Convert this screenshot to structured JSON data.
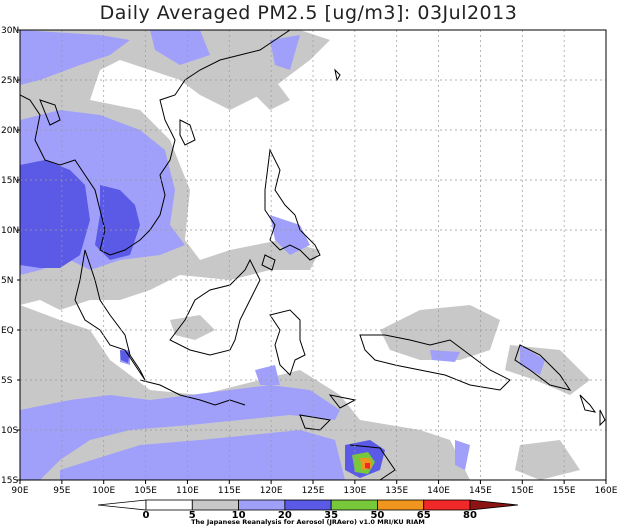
{
  "title": "Daily Averaged PM2.5 [ug/m3]: 03Jul2013",
  "credit": "The Japanese Reanalysis for Aerosol (JRAero) v1.0 MRI/KU RIAM",
  "map": {
    "lon_range": [
      90,
      160
    ],
    "lat_range": [
      -15,
      30
    ],
    "lon_ticks": [
      "90E",
      "95E",
      "100E",
      "105E",
      "110E",
      "115E",
      "120E",
      "125E",
      "130E",
      "135E",
      "140E",
      "145E",
      "150E",
      "155E",
      "160E"
    ],
    "lat_ticks": [
      "30N",
      "25N",
      "20N",
      "15N",
      "10N",
      "5N",
      "EQ",
      "5S",
      "10S",
      "15S"
    ],
    "gridlines": true
  },
  "colorbar": {
    "levels": [
      "0",
      "5",
      "10",
      "20",
      "35",
      "50",
      "65",
      "80"
    ],
    "colors": {
      "below_0": "#ffffff",
      "0_5": "#ffffff",
      "5_10": "#c8c8c8",
      "10_20": "#a0a0fa",
      "20_35": "#5a5ae6",
      "35_50": "#78c83c",
      "50_65": "#f0961e",
      "65_80": "#f02828",
      "above_80": "#8c1414"
    }
  }
}
